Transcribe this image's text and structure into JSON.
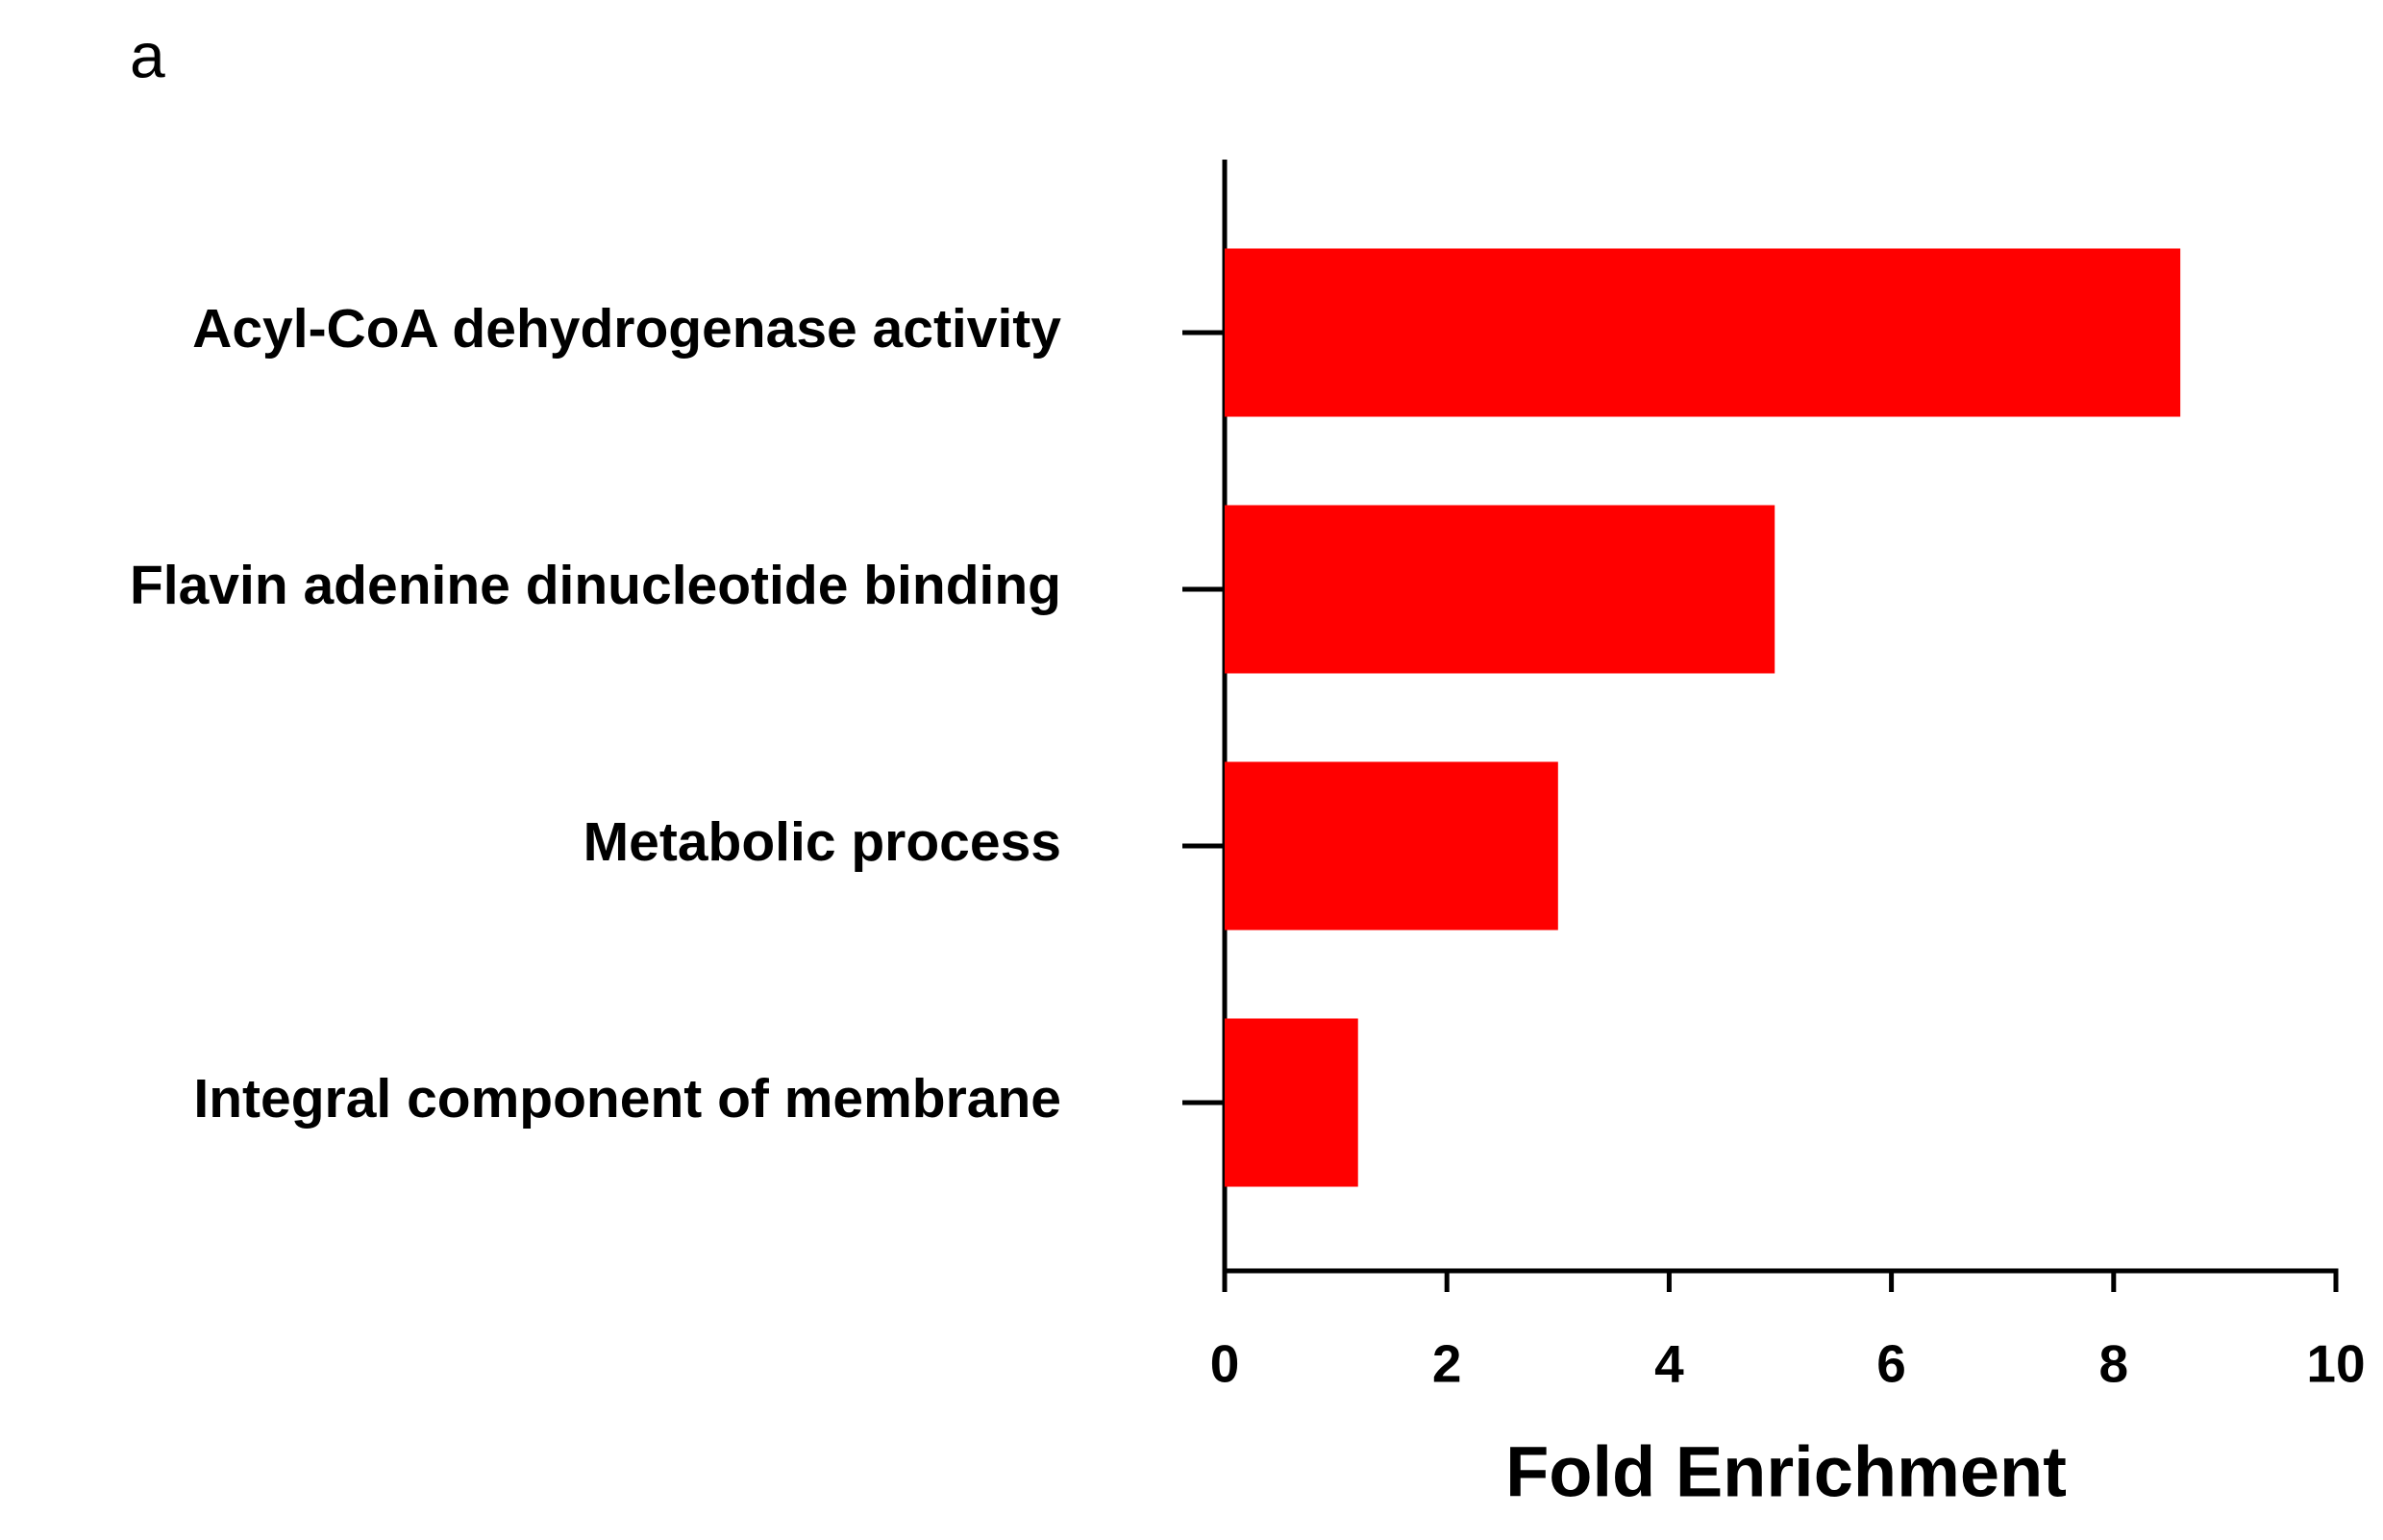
{
  "chart_data": {
    "type": "bar",
    "orientation": "horizontal",
    "panel_label": "a",
    "x_label": "Fold Enrichment",
    "categories": [
      "Acyl-CoA dehydrogenase activity",
      "Flavin adenine dinucleotide binding",
      "Metabolic process",
      "Integral component of membrane"
    ],
    "values": [
      8.6,
      4.95,
      3.0,
      1.2
    ],
    "color": "#ff0000",
    "xlim": [
      0,
      10
    ],
    "xticks": [
      0,
      2,
      4,
      6,
      8,
      10
    ],
    "grid": false
  }
}
